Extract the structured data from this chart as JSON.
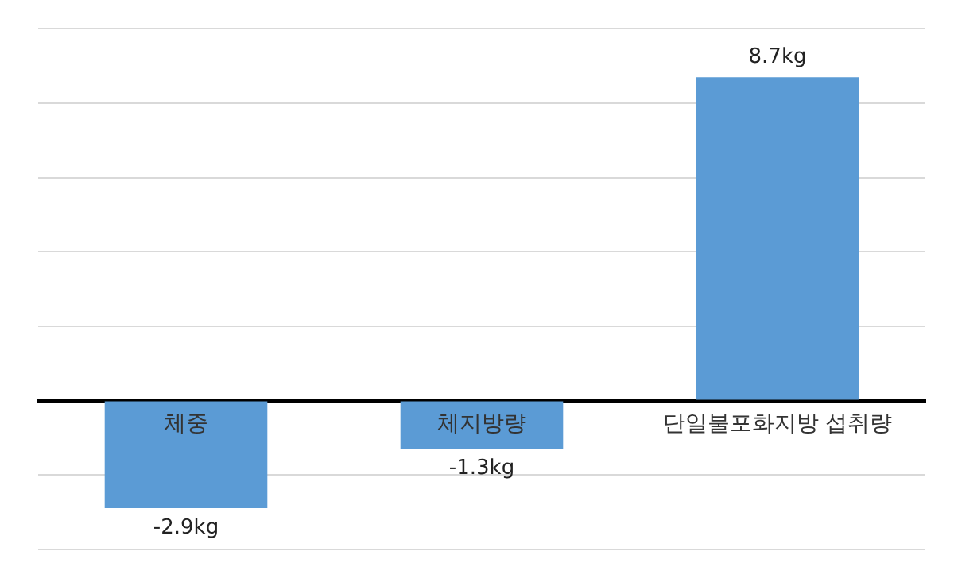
{
  "chart_data": {
    "type": "bar",
    "categories": [
      "체중",
      "체지방량",
      "단일불포화지방 섭취량"
    ],
    "values": [
      -2.9,
      -1.3,
      8.7
    ],
    "value_labels": [
      "-2.9kg",
      "-1.3kg",
      "8.7kg"
    ],
    "color": "#5b9bd5",
    "ylim": [
      -4,
      10
    ],
    "yticks": [
      {
        "value": -4,
        "label": null
      },
      {
        "value": -2,
        "label": null
      },
      {
        "value": 0,
        "label": null
      },
      {
        "value": 2,
        "label": null
      },
      {
        "value": 4,
        "label": null
      },
      {
        "value": 6,
        "label": null
      },
      {
        "value": 8,
        "label": null
      },
      {
        "value": 10,
        "label": null
      }
    ],
    "grid": "y",
    "legend": false
  }
}
